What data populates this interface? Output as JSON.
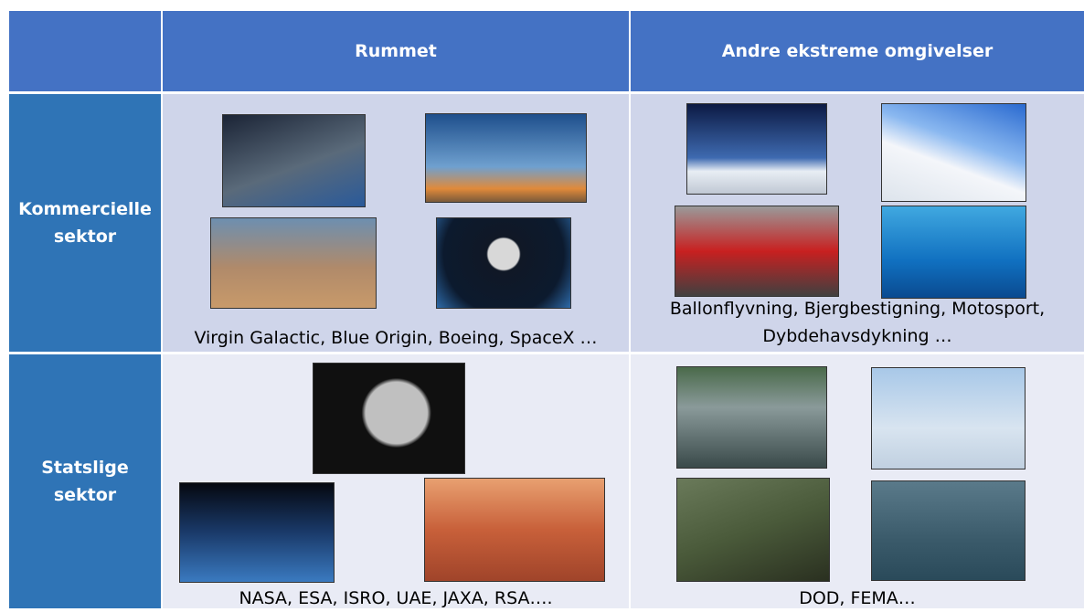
{
  "header": {
    "columns": [
      "Rummet",
      "Andre ekstreme omgivelser"
    ]
  },
  "rows": [
    {
      "label": [
        "Kommercielle",
        "sektor"
      ],
      "cells": [
        [
          "Virgin Galactic, Blue Origin, Boeing, SpaceX …"
        ],
        [
          "Ballonflyvning, Bjergbestigning, Motosport,",
          "Dybdehavsdykning …"
        ]
      ]
    },
    {
      "label": [
        "Statslige",
        "sektor"
      ],
      "cells": [
        [
          "NASA, ESA, ISRO, UAE, JAXA, RSA…."
        ],
        [
          "DOD, FEMA…"
        ]
      ]
    }
  ]
}
